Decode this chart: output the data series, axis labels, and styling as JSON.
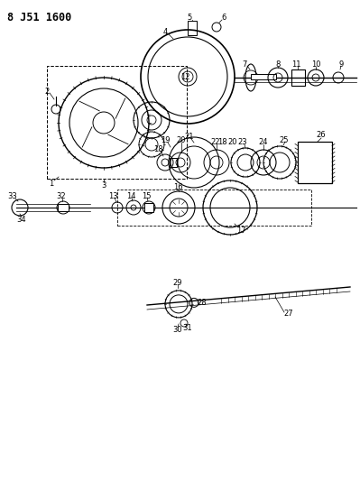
{
  "title": "8 J51 1600",
  "bg_color": "#ffffff",
  "line_color": "#000000",
  "fig_width": 3.99,
  "fig_height": 5.33,
  "dpi": 100
}
